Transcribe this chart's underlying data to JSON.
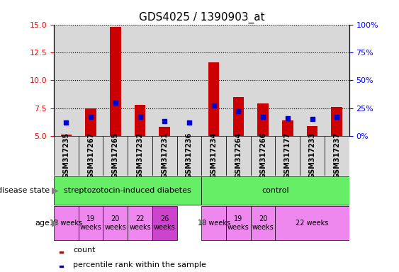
{
  "title": "GDS4025 / 1390903_at",
  "samples": [
    "GSM317235",
    "GSM317267",
    "GSM317265",
    "GSM317232",
    "GSM317231",
    "GSM317236",
    "GSM317234",
    "GSM317264",
    "GSM317266",
    "GSM317177",
    "GSM317233",
    "GSM317237"
  ],
  "count_values": [
    5.1,
    7.5,
    14.8,
    7.8,
    5.8,
    5.0,
    11.6,
    8.5,
    7.9,
    6.4,
    5.9,
    7.6
  ],
  "percentile_values": [
    6.2,
    6.7,
    8.0,
    6.7,
    6.35,
    6.2,
    7.7,
    7.2,
    6.7,
    6.6,
    6.55,
    6.7
  ],
  "ylim_left": [
    5,
    15
  ],
  "ylim_right": [
    0,
    100
  ],
  "yticks_left": [
    5,
    7.5,
    10,
    12.5,
    15
  ],
  "yticks_right": [
    0,
    25,
    50,
    75,
    100
  ],
  "bar_color": "#cc0000",
  "dot_color": "#0000cc",
  "sample_bg_color": "#d8d8d8",
  "ds_groups": [
    {
      "label": "streptozotocin-induced diabetes",
      "start": 0,
      "end": 6,
      "color": "#66ee66"
    },
    {
      "label": "control",
      "start": 6,
      "end": 12,
      "color": "#66ee66"
    }
  ],
  "age_groups": [
    {
      "label": "18 weeks",
      "start": 0,
      "end": 1,
      "color": "#ee88ee"
    },
    {
      "label": "19\nweeks",
      "start": 1,
      "end": 2,
      "color": "#ee88ee"
    },
    {
      "label": "20\nweeks",
      "start": 2,
      "end": 3,
      "color": "#ee88ee"
    },
    {
      "label": "22\nweeks",
      "start": 3,
      "end": 4,
      "color": "#ee88ee"
    },
    {
      "label": "26\nweeks",
      "start": 4,
      "end": 5,
      "color": "#cc44cc"
    },
    {
      "label": "18 weeks",
      "start": 6,
      "end": 7,
      "color": "#ee88ee"
    },
    {
      "label": "19\nweeks",
      "start": 7,
      "end": 8,
      "color": "#ee88ee"
    },
    {
      "label": "20\nweeks",
      "start": 8,
      "end": 9,
      "color": "#ee88ee"
    },
    {
      "label": "22 weeks",
      "start": 9,
      "end": 12,
      "color": "#ee88ee"
    }
  ],
  "legend_count_label": "count",
  "legend_pct_label": "percentile rank within the sample",
  "disease_state_label": "disease state",
  "age_label": "age",
  "bar_width": 0.45,
  "dot_size": 25,
  "title_fontsize": 11,
  "tick_fontsize": 8,
  "label_fontsize": 8,
  "sample_fontsize": 7
}
